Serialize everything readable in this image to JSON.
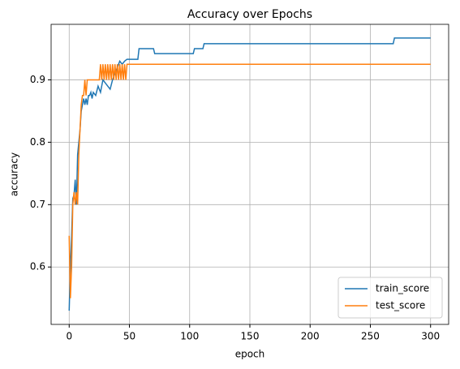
{
  "chart_data": {
    "type": "line",
    "title": "Accuracy over Epochs",
    "x_label": "epoch",
    "y_label": "accuracy",
    "xlim": [
      -15,
      315
    ],
    "xticks": [
      0,
      50,
      100,
      150,
      200,
      250,
      300
    ],
    "ylim": [
      0.508,
      0.989
    ],
    "yticks": [
      0.6,
      0.7,
      0.8,
      0.9
    ],
    "grid": true,
    "legend": "lower right",
    "series": [
      {
        "name": "train_score",
        "color": "#1f77b4",
        "x": [
          0,
          1,
          2,
          3,
          4,
          5,
          6,
          7,
          8,
          9,
          10,
          11,
          12,
          13,
          14,
          15,
          16,
          17,
          18,
          19,
          20,
          22,
          24,
          26,
          28,
          30,
          32,
          34,
          36,
          38,
          40,
          42,
          44,
          46,
          48,
          57,
          58,
          70,
          71,
          103,
          104,
          111,
          112,
          269,
          270,
          300
        ],
        "values": [
          0.53,
          0.6,
          0.65,
          0.71,
          0.715,
          0.74,
          0.7,
          0.78,
          0.8,
          0.82,
          0.85,
          0.86,
          0.87,
          0.86,
          0.87,
          0.86,
          0.875,
          0.875,
          0.88,
          0.87,
          0.88,
          0.875,
          0.89,
          0.88,
          0.9,
          0.895,
          0.89,
          0.885,
          0.9,
          0.91,
          0.92,
          0.93,
          0.925,
          0.93,
          0.933,
          0.933,
          0.95,
          0.95,
          0.942,
          0.942,
          0.95,
          0.95,
          0.958,
          0.958,
          0.967,
          0.967
        ]
      },
      {
        "name": "test_score",
        "color": "#ff7f0e",
        "x": [
          0,
          1,
          2,
          3,
          4,
          5,
          6,
          7,
          8,
          9,
          10,
          11,
          12,
          13,
          14,
          15,
          16,
          25,
          26,
          27,
          28,
          29,
          30,
          31,
          32,
          33,
          34,
          35,
          36,
          37,
          38,
          39,
          40,
          41,
          42,
          43,
          44,
          45,
          46,
          47,
          48,
          300
        ],
        "values": [
          0.65,
          0.55,
          0.6,
          0.7,
          0.72,
          0.7,
          0.72,
          0.7,
          0.78,
          0.82,
          0.86,
          0.875,
          0.875,
          0.9,
          0.875,
          0.9,
          0.9,
          0.9,
          0.925,
          0.9,
          0.925,
          0.9,
          0.925,
          0.9,
          0.925,
          0.9,
          0.925,
          0.9,
          0.925,
          0.9,
          0.925,
          0.9,
          0.925,
          0.9,
          0.925,
          0.9,
          0.925,
          0.9,
          0.925,
          0.9,
          0.925,
          0.925
        ]
      }
    ]
  }
}
